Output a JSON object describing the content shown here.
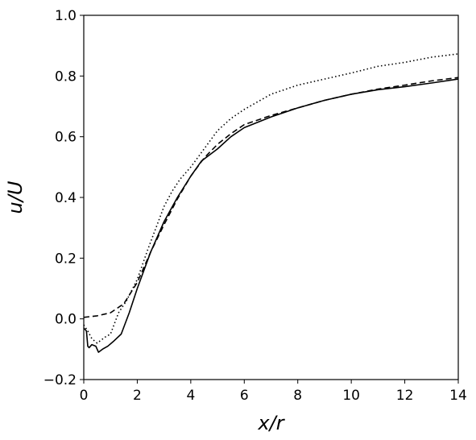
{
  "chart_data": {
    "type": "line",
    "title": "",
    "xlabel": "x/r",
    "ylabel": "u/U",
    "xlim": [
      0,
      14
    ],
    "ylim": [
      -0.2,
      1.0
    ],
    "xticks": [
      0,
      2,
      4,
      6,
      8,
      10,
      12,
      14
    ],
    "yticks": [
      -0.2,
      0.0,
      0.2,
      0.4,
      0.6,
      0.8,
      1.0
    ],
    "xtick_labels": [
      "0",
      "2",
      "4",
      "6",
      "8",
      "10",
      "12",
      "14"
    ],
    "ytick_labels": [
      "−0.2",
      "0.0",
      "0.2",
      "0.4",
      "0.6",
      "0.8",
      "1.0"
    ],
    "grid": false,
    "legend": "none",
    "series": [
      {
        "line_style": "solid",
        "color": "#000000",
        "x": [
          0,
          0.1,
          0.15,
          0.2,
          0.3,
          0.45,
          0.55,
          0.7,
          0.9,
          1.1,
          1.4,
          1.7,
          2.0,
          2.5,
          3.0,
          3.5,
          4.0,
          4.4,
          5.0,
          5.5,
          6.0,
          7.0,
          8.0,
          9.0,
          10.0,
          11.0,
          12.0,
          13.0,
          14.0
        ],
        "y": [
          -0.03,
          -0.04,
          -0.09,
          -0.095,
          -0.085,
          -0.09,
          -0.11,
          -0.1,
          -0.09,
          -0.075,
          -0.05,
          0.02,
          0.1,
          0.22,
          0.32,
          0.4,
          0.47,
          0.52,
          0.56,
          0.6,
          0.63,
          0.665,
          0.695,
          0.72,
          0.74,
          0.755,
          0.765,
          0.777,
          0.79
        ]
      },
      {
        "line_style": "dashed",
        "color": "#000000",
        "x": [
          0,
          0.5,
          1.0,
          1.5,
          2.0,
          2.5,
          3.0,
          3.5,
          4.0,
          4.5,
          5.0,
          5.5,
          6.0,
          7.0,
          8.0,
          9.0,
          10.0,
          11.0,
          12.0,
          13.0,
          14.0
        ],
        "y": [
          0.005,
          0.01,
          0.02,
          0.05,
          0.12,
          0.22,
          0.31,
          0.395,
          0.47,
          0.53,
          0.575,
          0.61,
          0.64,
          0.67,
          0.695,
          0.72,
          0.74,
          0.757,
          0.77,
          0.784,
          0.795
        ]
      },
      {
        "line_style": "dotted",
        "color": "#000000",
        "x": [
          0,
          0.15,
          0.3,
          0.5,
          0.8,
          1.0,
          1.3,
          1.6,
          2.0,
          2.4,
          2.7,
          3.0,
          3.3,
          3.6,
          4.0,
          4.5,
          5.0,
          5.5,
          6.0,
          6.5,
          7.0,
          7.5,
          8.0,
          9.0,
          10.0,
          11.0,
          12.0,
          13.0,
          14.0
        ],
        "y": [
          -0.02,
          -0.04,
          -0.065,
          -0.08,
          -0.06,
          -0.05,
          0.02,
          0.06,
          0.13,
          0.23,
          0.3,
          0.37,
          0.42,
          0.46,
          0.5,
          0.56,
          0.62,
          0.66,
          0.69,
          0.715,
          0.74,
          0.755,
          0.77,
          0.79,
          0.81,
          0.832,
          0.845,
          0.862,
          0.873
        ]
      }
    ]
  }
}
